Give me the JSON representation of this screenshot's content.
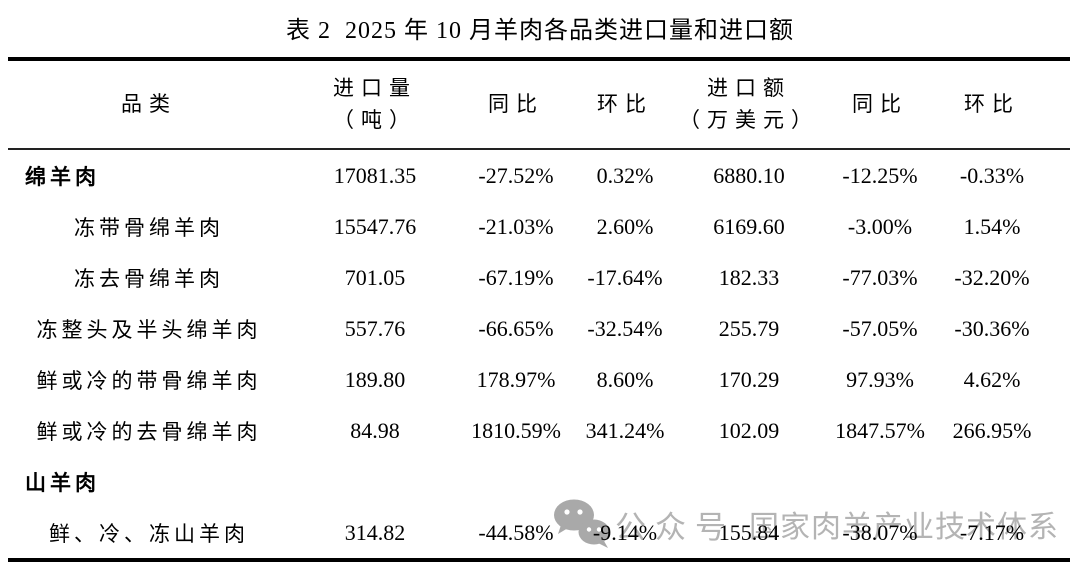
{
  "page": {
    "title": "表 2  2025 年 10 月羊肉各品类进口量和进口额"
  },
  "table": {
    "headers": [
      {
        "label": "品类",
        "sub": ""
      },
      {
        "label": "进口量",
        "sub": "（吨）"
      },
      {
        "label": "同比",
        "sub": ""
      },
      {
        "label": "环比",
        "sub": ""
      },
      {
        "label": "进口额",
        "sub": "（万美元）"
      },
      {
        "label": "同比",
        "sub": ""
      },
      {
        "label": "环比",
        "sub": ""
      }
    ],
    "rows": [
      {
        "category": "绵羊肉",
        "level": 0,
        "values": [
          "17081.35",
          "-27.52%",
          "0.32%",
          "6880.10",
          "-12.25%",
          "-0.33%"
        ]
      },
      {
        "category": "冻带骨绵羊肉",
        "level": 1,
        "values": [
          "15547.76",
          "-21.03%",
          "2.60%",
          "6169.60",
          "-3.00%",
          "1.54%"
        ]
      },
      {
        "category": "冻去骨绵羊肉",
        "level": 1,
        "values": [
          "701.05",
          "-67.19%",
          "-17.64%",
          "182.33",
          "-77.03%",
          "-32.20%"
        ]
      },
      {
        "category": "冻整头及半头绵羊肉",
        "level": 1,
        "values": [
          "557.76",
          "-66.65%",
          "-32.54%",
          "255.79",
          "-57.05%",
          "-30.36%"
        ]
      },
      {
        "category": "鲜或冷的带骨绵羊肉",
        "level": 1,
        "values": [
          "189.80",
          "178.97%",
          "8.60%",
          "170.29",
          "97.93%",
          "4.62%"
        ]
      },
      {
        "category": "鲜或冷的去骨绵羊肉",
        "level": 1,
        "values": [
          "84.98",
          "1810.59%",
          "341.24%",
          "102.09",
          "1847.57%",
          "266.95%"
        ]
      },
      {
        "category": "山羊肉",
        "level": 0,
        "values": [
          "",
          "",
          "",
          "",
          "",
          ""
        ]
      },
      {
        "category": "鲜、冷、冻山羊肉",
        "level": 1,
        "values": [
          "314.82",
          "-44.58%",
          "-9.14%",
          "155.84",
          "-38.07%",
          "-7.17%"
        ]
      }
    ]
  },
  "watermark": {
    "icon": "wechat-icon",
    "label": "公众号",
    "name": "国家肉羊产业技术体系",
    "color": "#b4b4b4"
  },
  "colors": {
    "background": "#ffffff",
    "text": "#000000",
    "border": "#000000",
    "watermark": "#b4b4b4"
  }
}
